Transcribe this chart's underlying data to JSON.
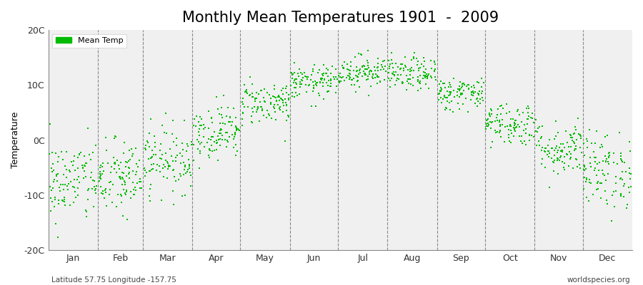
{
  "title": "Monthly Mean Temperatures 1901  -  2009",
  "ylabel": "Temperature",
  "subtitle_left": "Latitude 57.75 Longitude -157.75",
  "subtitle_right": "worldspecies.org",
  "ylim": [
    -20,
    20
  ],
  "ytick_labels": [
    "20C",
    "10C",
    "0C",
    "-10C",
    "-20C"
  ],
  "ytick_values": [
    20,
    10,
    0,
    -10,
    -20
  ],
  "months": [
    "Jan",
    "Feb",
    "Mar",
    "Apr",
    "May",
    "Jun",
    "Jul",
    "Aug",
    "Sep",
    "Oct",
    "Nov",
    "Dec"
  ],
  "month_days": [
    31,
    28,
    31,
    30,
    31,
    30,
    31,
    31,
    30,
    31,
    30,
    31
  ],
  "n_years": 109,
  "dot_color": "#00bb00",
  "dot_size": 3,
  "background_color": "#ffffff",
  "plot_bg_color": "#f0f0f0",
  "legend_label": "Mean Temp",
  "monthly_mean_temps": [
    -7.5,
    -7.0,
    -3.5,
    1.5,
    6.8,
    10.5,
    12.5,
    12.0,
    8.5,
    3.0,
    -1.5,
    -5.5
  ],
  "monthly_std_temps": [
    3.8,
    3.5,
    3.0,
    2.5,
    2.0,
    1.5,
    1.5,
    1.5,
    1.5,
    2.0,
    2.5,
    3.5
  ],
  "title_fontsize": 15,
  "axis_label_fontsize": 9,
  "tick_fontsize": 9,
  "random_seed": 42
}
